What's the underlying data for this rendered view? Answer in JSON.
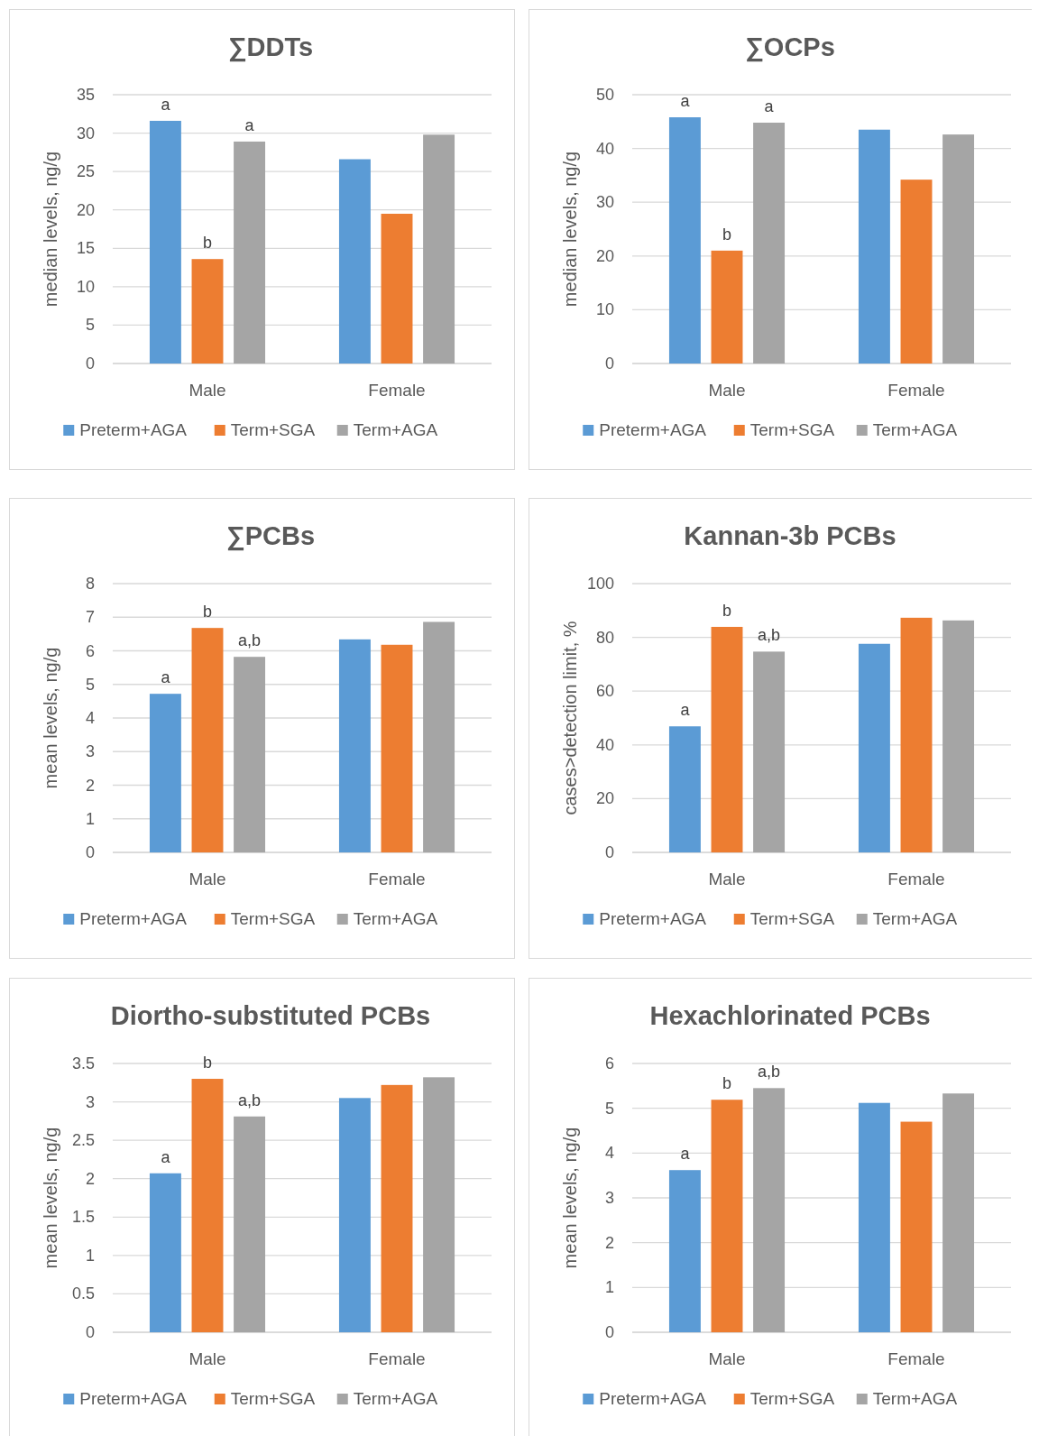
{
  "chart_data": [
    {
      "type": "bar",
      "title": "∑DDTs",
      "ylabel": "median levels, ng/g",
      "categories": [
        "Male",
        "Female"
      ],
      "ylim": [
        0,
        35
      ],
      "yticks": [
        0,
        5,
        10,
        15,
        20,
        25,
        30,
        35
      ],
      "grid": "y",
      "legend": "bottom",
      "series": [
        {
          "name": "Preterm+AGA",
          "color": "#5b9bd5",
          "values": [
            31.6,
            26.6
          ]
        },
        {
          "name": "Term+SGA",
          "color": "#ed7d31",
          "values": [
            13.6,
            19.5
          ]
        },
        {
          "name": "Term+AGA",
          "color": "#a5a5a5",
          "values": [
            28.9,
            29.8
          ]
        }
      ],
      "annotations": [
        "a",
        "b",
        "a"
      ]
    },
    {
      "type": "bar",
      "title": "∑OCPs",
      "ylabel": "median levels, ng/g",
      "categories": [
        "Male",
        "Female"
      ],
      "ylim": [
        0,
        50
      ],
      "yticks": [
        0,
        10,
        20,
        30,
        40,
        50
      ],
      "grid": "y",
      "legend": "bottom",
      "series": [
        {
          "name": "Preterm+AGA",
          "color": "#5b9bd5",
          "values": [
            45.8,
            43.5
          ]
        },
        {
          "name": "Term+SGA",
          "color": "#ed7d31",
          "values": [
            21.0,
            34.2
          ]
        },
        {
          "name": "Term+AGA",
          "color": "#a5a5a5",
          "values": [
            44.8,
            42.6
          ]
        }
      ],
      "annotations": [
        "a",
        "b",
        "a"
      ]
    },
    {
      "type": "bar",
      "title": "∑PCBs",
      "ylabel": "mean levels, ng/g",
      "categories": [
        "Male",
        "Female"
      ],
      "ylim": [
        0,
        8
      ],
      "yticks": [
        0,
        1,
        2,
        3,
        4,
        5,
        6,
        7,
        8
      ],
      "grid": "y",
      "legend": "bottom",
      "series": [
        {
          "name": "Preterm+AGA",
          "color": "#5b9bd5",
          "values": [
            4.72,
            6.34
          ]
        },
        {
          "name": "Term+SGA",
          "color": "#ed7d31",
          "values": [
            6.68,
            6.18
          ]
        },
        {
          "name": "Term+AGA",
          "color": "#a5a5a5",
          "values": [
            5.82,
            6.86
          ]
        }
      ],
      "annotations": [
        "a",
        "b",
        "a,b"
      ]
    },
    {
      "type": "bar",
      "title": "Kannan-3b PCBs",
      "ylabel": "cases>detection limit, %",
      "categories": [
        "Male",
        "Female"
      ],
      "ylim": [
        0,
        100
      ],
      "yticks": [
        0,
        20,
        40,
        60,
        80,
        100
      ],
      "grid": "y",
      "legend": "bottom",
      "series": [
        {
          "name": "Preterm+AGA",
          "color": "#5b9bd5",
          "values": [
            46.9,
            77.6
          ]
        },
        {
          "name": "Term+SGA",
          "color": "#ed7d31",
          "values": [
            83.9,
            87.3
          ]
        },
        {
          "name": "Term+AGA",
          "color": "#a5a5a5",
          "values": [
            74.7,
            86.3
          ]
        }
      ],
      "annotations": [
        "a",
        "b",
        "a,b"
      ]
    },
    {
      "type": "bar",
      "title": "Diortho-substituted PCBs",
      "ylabel": "mean levels, ng/g",
      "categories": [
        "Male",
        "Female"
      ],
      "ylim": [
        0,
        3.5
      ],
      "yticks": [
        0,
        0.5,
        1,
        1.5,
        2,
        2.5,
        3,
        3.5
      ],
      "grid": "y",
      "legend": "bottom",
      "series": [
        {
          "name": "Preterm+AGA",
          "color": "#5b9bd5",
          "values": [
            2.07,
            3.05
          ]
        },
        {
          "name": "Term+SGA",
          "color": "#ed7d31",
          "values": [
            3.3,
            3.22
          ]
        },
        {
          "name": "Term+AGA",
          "color": "#a5a5a5",
          "values": [
            2.81,
            3.32
          ]
        }
      ],
      "annotations": [
        "a",
        "b",
        "a,b"
      ]
    },
    {
      "type": "bar",
      "title": "Hexachlorinated PCBs",
      "ylabel": "mean levels, ng/g",
      "categories": [
        "Male",
        "Female"
      ],
      "ylim": [
        0,
        6
      ],
      "yticks": [
        0,
        1,
        2,
        3,
        4,
        5,
        6
      ],
      "grid": "y",
      "legend": "bottom",
      "series": [
        {
          "name": "Preterm+AGA",
          "color": "#5b9bd5",
          "values": [
            3.62,
            5.12
          ]
        },
        {
          "name": "Term+SGA",
          "color": "#ed7d31",
          "values": [
            5.19,
            4.7
          ]
        },
        {
          "name": "Term+AGA",
          "color": "#a5a5a5",
          "values": [
            5.45,
            5.33
          ]
        }
      ],
      "annotations": [
        "a",
        "b",
        "a,b"
      ]
    }
  ]
}
